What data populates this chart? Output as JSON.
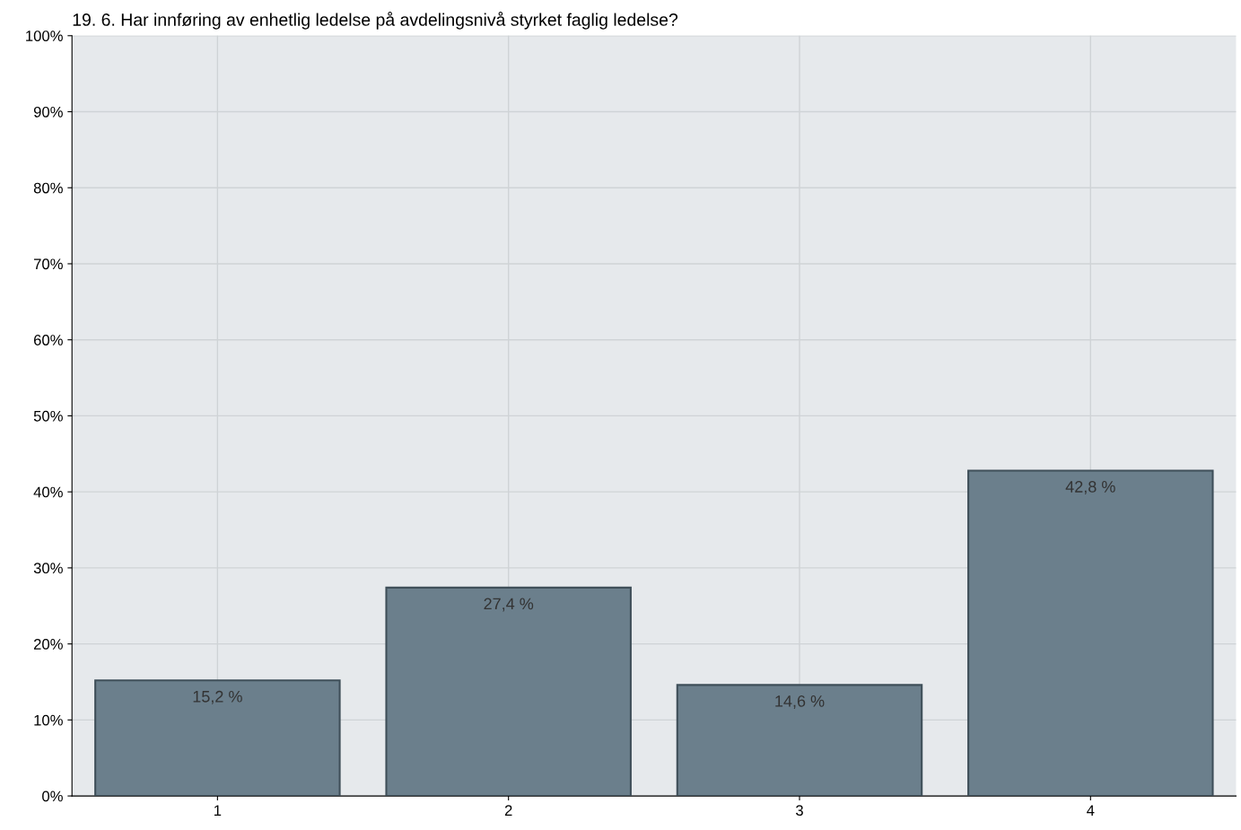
{
  "chart_data": {
    "type": "bar",
    "title": "19. 6. Har innføring av enhetlig ledelse på avdelingsnivå styrket faglig ledelse?",
    "categories": [
      "1",
      "2",
      "3",
      "4"
    ],
    "values": [
      15.2,
      27.4,
      14.6,
      42.8
    ],
    "value_labels": [
      "15,2 %",
      "27,4 %",
      "14,6 %",
      "42,8 %"
    ],
    "color": "#6b7f8c",
    "ylim": [
      0,
      100
    ],
    "yticks": [
      {
        "value": 0,
        "label": "0%"
      },
      {
        "value": 10,
        "label": "10%"
      },
      {
        "value": 20,
        "label": "20%"
      },
      {
        "value": 30,
        "label": "30%"
      },
      {
        "value": 40,
        "label": "40%"
      },
      {
        "value": 50,
        "label": "50%"
      },
      {
        "value": 60,
        "label": "60%"
      },
      {
        "value": 70,
        "label": "70%"
      },
      {
        "value": 80,
        "label": "80%"
      },
      {
        "value": 90,
        "label": "90%"
      },
      {
        "value": 100,
        "label": "100%"
      }
    ],
    "grid": true
  }
}
